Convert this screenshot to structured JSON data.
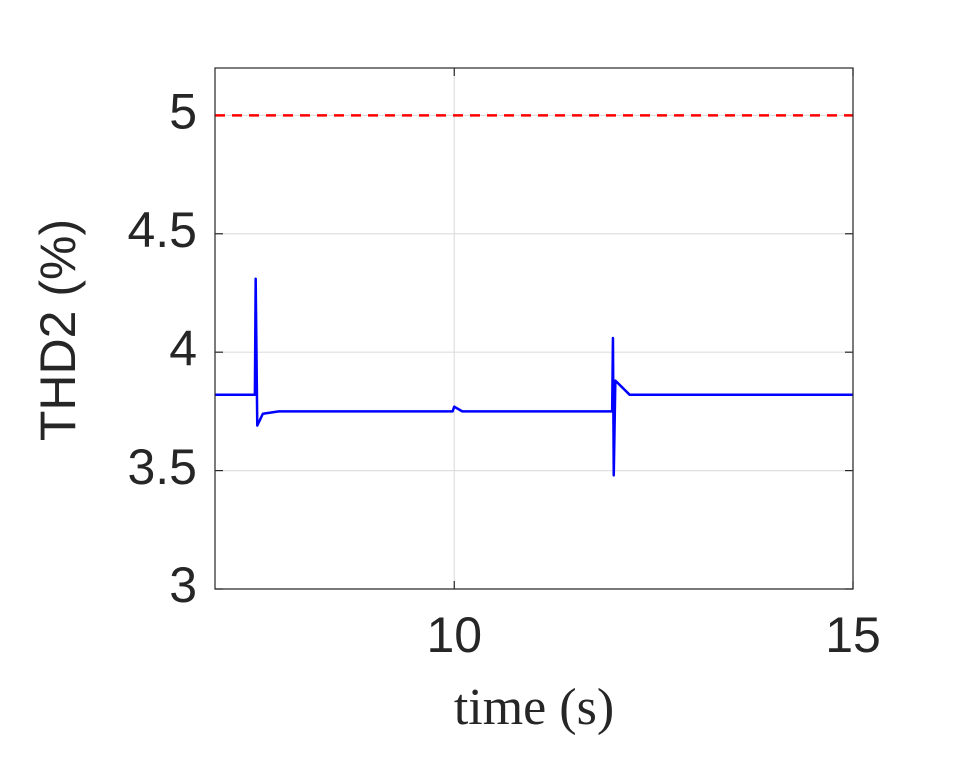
{
  "chart_data": {
    "type": "line",
    "x_label": "time (s)",
    "y_label": "THD2 (%)",
    "x": [
      7,
      7.5,
      7.51,
      7.53,
      7.6,
      7.8,
      9.98,
      10.0,
      10.1,
      11.98,
      11.99,
      12.0,
      12.02,
      12.2,
      15
    ],
    "values": [
      3.82,
      3.82,
      4.31,
      3.69,
      3.74,
      3.75,
      3.75,
      3.77,
      3.75,
      3.75,
      4.06,
      3.48,
      3.88,
      3.82,
      3.82
    ],
    "color": "#0000ff",
    "reference_line": {
      "value": 5,
      "color": "#ff0000",
      "style": "dashed"
    },
    "xlim": [
      7,
      15
    ],
    "xticks": [
      10,
      15
    ],
    "ylim": [
      3,
      5.2
    ],
    "yticks": [
      3,
      3.5,
      4,
      4.5,
      5
    ],
    "grid": true
  }
}
